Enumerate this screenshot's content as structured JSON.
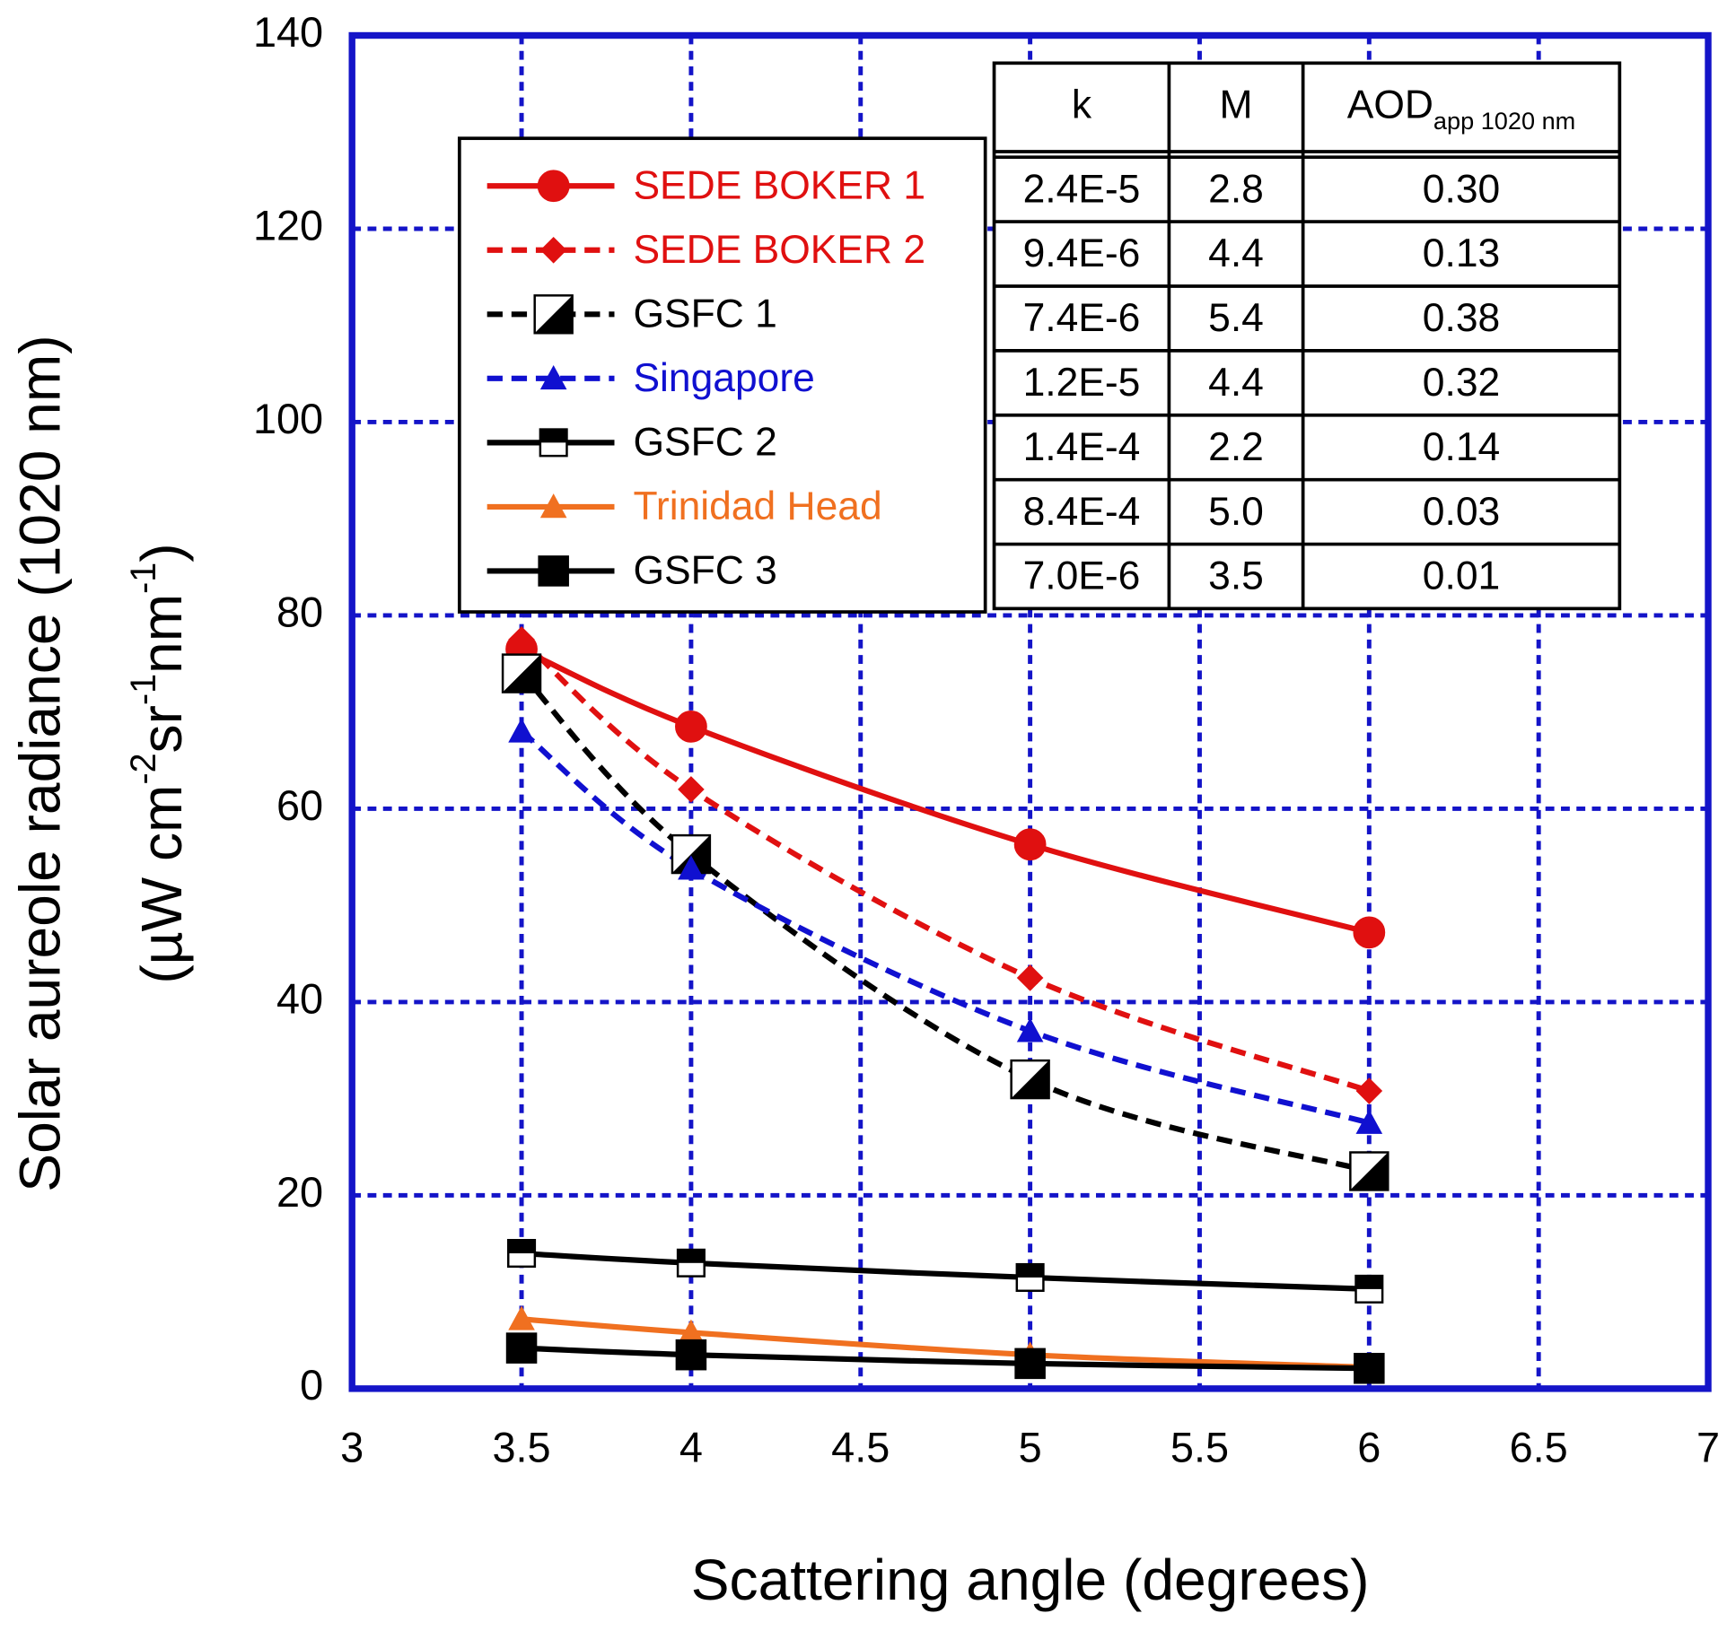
{
  "chart_data": {
    "type": "line",
    "xlabel": "Scattering angle (degrees)",
    "ylabel": "Solar aureole radiance (1020 nm)",
    "ylabel2": [
      {
        "text": "(µW cm"
      },
      {
        "text": "-2",
        "sup": true
      },
      {
        "text": "sr"
      },
      {
        "text": "-1",
        "sup": true
      },
      {
        "text": "nm"
      },
      {
        "text": "-1",
        "sup": true
      },
      {
        "text": ")"
      }
    ],
    "x": [
      3.5,
      4,
      5,
      6
    ],
    "xlim": [
      3,
      7
    ],
    "xticks": [
      3,
      3.5,
      4,
      4.5,
      5,
      5.5,
      6,
      6.5,
      7
    ],
    "ylim": [
      0,
      140
    ],
    "yticks": [
      0,
      20,
      40,
      60,
      80,
      100,
      120,
      140
    ],
    "grid": true,
    "grid_color": "#1414c8",
    "series": [
      {
        "name": "SEDE BOKER 1",
        "color": "#e01010",
        "dashed": false,
        "marker": "circle",
        "values": [
          76.5,
          68.5,
          56.3,
          47.2
        ]
      },
      {
        "name": "SEDE BOKER 2",
        "color": "#e01010",
        "dashed": true,
        "marker": "diamond",
        "values": [
          77.5,
          62,
          42.5,
          30.8
        ]
      },
      {
        "name": "GSFC 1",
        "color": "#000000",
        "dashed": true,
        "marker": "diag-square",
        "values": [
          74,
          55.3,
          32,
          22.5
        ]
      },
      {
        "name": "Singapore",
        "color": "#1010d0",
        "dashed": true,
        "marker": "triangle",
        "values": [
          68,
          53.8,
          37,
          27.5
        ]
      },
      {
        "name": "GSFC 2",
        "color": "#000000",
        "dashed": false,
        "marker": "half-square",
        "values": [
          14,
          13,
          11.5,
          10.3
        ]
      },
      {
        "name": "Trinidad Head",
        "color": "#f07020",
        "dashed": false,
        "marker": "triangle",
        "values": [
          7.2,
          5.8,
          3.5,
          2.2
        ]
      },
      {
        "name": "GSFC 3",
        "color": "#000000",
        "dashed": false,
        "marker": "square",
        "values": [
          4.2,
          3.5,
          2.6,
          2.1
        ]
      }
    ],
    "table": {
      "header": [
        {
          "text": "k"
        },
        {
          "text": "M"
        },
        {
          "text": "AOD",
          "sub": "app 1020 nm"
        }
      ],
      "rows": [
        [
          "2.4E-5",
          "2.8",
          "0.30"
        ],
        [
          "9.4E-6",
          "4.4",
          "0.13"
        ],
        [
          "7.4E-6",
          "5.4",
          "0.38"
        ],
        [
          "1.2E-5",
          "4.4",
          "0.32"
        ],
        [
          "1.4E-4",
          "2.2",
          "0.14"
        ],
        [
          "8.4E-4",
          "5.0",
          "0.03"
        ],
        [
          "7.0E-6",
          "3.5",
          "0.01"
        ]
      ]
    }
  }
}
